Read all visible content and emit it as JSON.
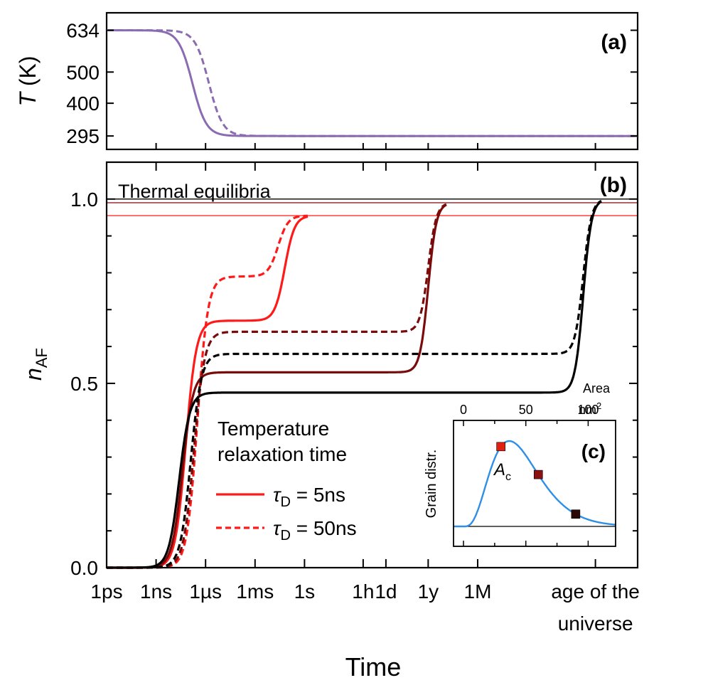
{
  "colors": {
    "temperature": "#8b6bb1",
    "red": "#ff1a1a",
    "dark_red": "#7a0b0b",
    "black": "#000000",
    "blue": "#2f8fe6",
    "square_red": "#e02010",
    "square_darkred": "#8b1010",
    "square_black": "#2a0808"
  },
  "xaxis": {
    "label": "Time",
    "ticks": [
      {
        "label": "1ps",
        "log10_s": -12
      },
      {
        "label": "1ns",
        "log10_s": -9
      },
      {
        "label": "1µs",
        "log10_s": -6
      },
      {
        "label": "1ms",
        "log10_s": -3
      },
      {
        "label": "1s",
        "log10_s": 0
      },
      {
        "label": "1h",
        "log10_s": 3.556
      },
      {
        "label": "1d",
        "log10_s": 4.936
      },
      {
        "label": "1y",
        "log10_s": 7.499
      },
      {
        "label": "1M",
        "log10_s": 10.5
      },
      {
        "label": "age of the",
        "label2": "universe",
        "log10_s": 17.64
      }
    ],
    "range_log10_s": [
      -12,
      20.2
    ]
  },
  "chart_data": [
    {
      "panel": "(a)",
      "type": "line",
      "ylabel": "T (K)",
      "ylabel_italic": "T",
      "ylabel_rest": " (K)",
      "yticks": [
        "634",
        "500",
        "400",
        "295"
      ],
      "yticks_values": [
        634,
        500,
        400,
        295
      ],
      "ylim": [
        252,
        690
      ],
      "series": [
        {
          "name": "τD = 5ns",
          "style": "solid",
          "T_start": 634,
          "T_end": 295,
          "midpoint_log10_s": -6.8,
          "width_decades": 0.42
        },
        {
          "name": "τD = 50ns",
          "style": "dashed",
          "T_start": 634,
          "T_end": 295,
          "midpoint_log10_s": -5.8,
          "width_decades": 0.42
        }
      ]
    },
    {
      "panel": "(b)",
      "type": "line",
      "ylabel": "nAF",
      "ylabel_main": "n",
      "ylabel_sub": "AF",
      "yticks": [
        "0.0",
        "0.5",
        "1.0"
      ],
      "yticks_values": [
        0.0,
        0.5,
        1.0
      ],
      "ylim": [
        0.0,
        1.1
      ],
      "reference_lines": [
        {
          "value": 1.0,
          "color": "black"
        },
        {
          "value": 0.99,
          "color": "dark_red"
        },
        {
          "value": 0.955,
          "color": "red"
        }
      ],
      "reference_label": "Thermal equilibria",
      "series": [
        {
          "name": "τD = 5ns, A = Ac",
          "color": "red",
          "style": "solid",
          "rise_mid": -7.2,
          "rise_w": 0.32,
          "plateau": 0.67,
          "final": 0.955,
          "final_mid": -1.2,
          "final_w": 0.3,
          "end": 0.2
        },
        {
          "name": "τD = 50ns, A = Ac",
          "color": "red",
          "style": "dashed",
          "rise_mid": -6.5,
          "rise_w": 0.32,
          "plateau": 0.79,
          "final": 0.955,
          "final_mid": -1.6,
          "final_w": 0.3,
          "end": 0.2
        },
        {
          "name": "τD = 5ns, A = 60nm²",
          "color": "dark_red",
          "style": "solid",
          "rise_mid": -7.4,
          "rise_w": 0.32,
          "plateau": 0.53,
          "final": 0.99,
          "final_mid": 7.5,
          "final_w": 0.25,
          "end": 8.6
        },
        {
          "name": "τD = 50ns, A = 60nm²",
          "color": "dark_red",
          "style": "dashed",
          "rise_mid": -6.7,
          "rise_w": 0.32,
          "plateau": 0.64,
          "final": 0.99,
          "final_mid": 7.5,
          "final_w": 0.25,
          "end": 8.6
        },
        {
          "name": "τD = 5ns, A = 90nm²",
          "color": "black",
          "style": "solid",
          "rise_mid": -7.6,
          "rise_w": 0.32,
          "plateau": 0.475,
          "final": 1.0,
          "final_mid": 16.9,
          "final_w": 0.25,
          "end": 18.0
        },
        {
          "name": "τD = 50ns, A = 90nm²",
          "color": "black",
          "style": "dashed",
          "rise_mid": -6.9,
          "rise_w": 0.32,
          "plateau": 0.58,
          "final": 1.0,
          "final_mid": 16.9,
          "final_w": 0.25,
          "end": 18.0
        }
      ]
    },
    {
      "panel": "(c)",
      "type": "line",
      "ylabel": "Grain distr.",
      "xlabel": "Area",
      "xunit": "nm",
      "xunit_sup": "2",
      "xticks": [
        "0",
        "50",
        "100"
      ],
      "xticks_values": [
        0,
        50,
        100
      ],
      "xlim": [
        -8,
        122
      ],
      "annotation": "Ac",
      "annotation_main": "A",
      "annotation_sub": "c",
      "markers": [
        {
          "area": 30,
          "color": "square_red"
        },
        {
          "area": 60,
          "color": "square_darkred"
        },
        {
          "area": 90,
          "color": "square_black"
        }
      ]
    }
  ],
  "legend": {
    "title_line1": "Temperature",
    "title_line2": "relaxation time",
    "entries": [
      {
        "style": "solid",
        "symbol": "τ",
        "sub": "D",
        "value": " = 5ns"
      },
      {
        "style": "dashed",
        "symbol": "τ",
        "sub": "D",
        "value": " = 50ns"
      }
    ]
  }
}
